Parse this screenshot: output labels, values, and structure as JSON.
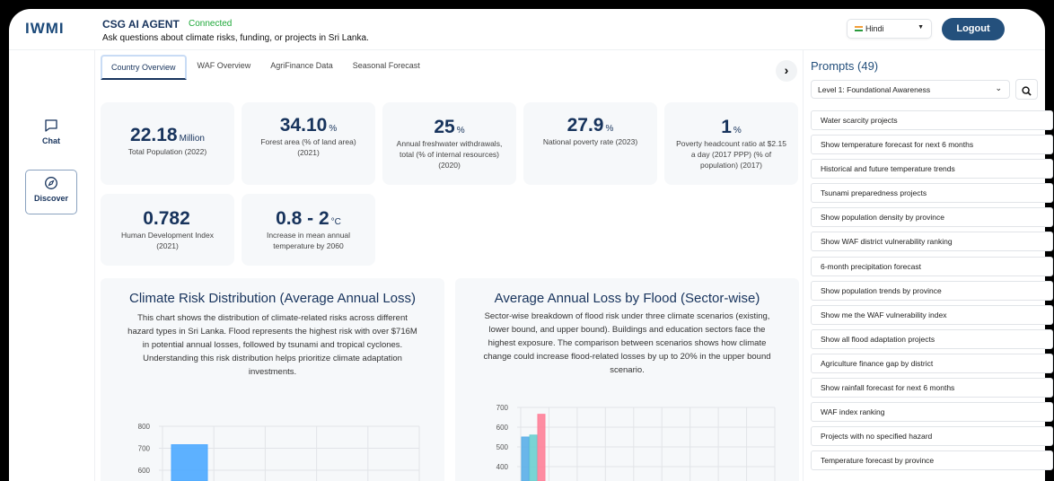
{
  "header": {
    "logo": "IWMI",
    "title": "CSG AI AGENT",
    "status": "Connected",
    "subtitle": "Ask questions about climate risks, funding, or projects in Sri Lanka.",
    "language": "Hindi",
    "logout": "Logout"
  },
  "sidebar": {
    "items": [
      {
        "label": "Chat",
        "icon": "chat-icon"
      },
      {
        "label": "Discover",
        "icon": "compass-icon"
      }
    ]
  },
  "tabs": [
    "Country Overview",
    "WAF Overview",
    "AgriFinance Data",
    "Seasonal Forecast"
  ],
  "stats": [
    {
      "value": "22.18",
      "unit": "Million",
      "label": "Total Population (2022)"
    },
    {
      "value": "34.10",
      "unit": "%",
      "label": "Forest area (% of land area) (2021)"
    },
    {
      "value": "25",
      "unit": "%",
      "label": "Annual freshwater withdrawals, total (% of internal resources) (2020)"
    },
    {
      "value": "27.9",
      "unit": "%",
      "label": "National poverty rate (2023)"
    },
    {
      "value": "1",
      "unit": "%",
      "label": "Poverty headcount ratio at $2.15 a day (2017 PPP) (% of population) (2017)"
    },
    {
      "value": "0.782",
      "unit": "",
      "label": "Human Development Index (2021)"
    },
    {
      "value": "0.8 - 2",
      "unit": "°C",
      "label": "Increase in mean annual temperature by 2060"
    }
  ],
  "charts": [
    {
      "title": "Climate Risk Distribution (Average Annual Loss)",
      "description": "This chart shows the distribution of climate-related risks across different hazard types in Sri Lanka. Flood represents the highest risk with over $716M in potential annual losses, followed by tsunami and tropical cyclones. Understanding this risk distribution helps prioritize climate adaptation investments."
    },
    {
      "title": "Average Annual Loss by Flood (Sector-wise)",
      "description": "Sector-wise breakdown of flood risk under three climate scenarios (existing, lower bound, and upper bound). Buildings and education sectors face the highest exposure. The comparison between scenarios shows how climate change could increase flood-related losses by up to 20% in the upper bound scenario."
    }
  ],
  "chart_data": [
    {
      "type": "bar",
      "title": "Climate Risk Distribution (Average Annual Loss)",
      "yticks": [
        600,
        700,
        800
      ],
      "ylim_visible": [
        560,
        800
      ],
      "categories_count": 5,
      "series": [
        {
          "name": "Flood",
          "values": [
            716
          ],
          "color": "#4da9ff"
        }
      ]
    },
    {
      "type": "bar",
      "title": "Average Annual Loss by Flood (Sector-wise)",
      "yticks": [
        400,
        500,
        600,
        700
      ],
      "ylim_visible": [
        380,
        700
      ],
      "categories_count": 9,
      "series": [
        {
          "name": "Existing",
          "values": [
            550
          ],
          "color": "#5aaee8"
        },
        {
          "name": "Lower Bound",
          "values": [
            560
          ],
          "color": "#6ccfcf"
        },
        {
          "name": "Upper Bound",
          "values": [
            665
          ],
          "color": "#ff7f98"
        }
      ]
    }
  ],
  "prompts": {
    "title": "Prompts (49)",
    "level": "Level 1: Foundational Awareness",
    "items": [
      "Water scarcity projects",
      "Show temperature forecast for next 6 months",
      "Historical and future temperature trends",
      "Tsunami preparedness projects",
      "Show population density by province",
      "Show WAF district vulnerability ranking",
      "6-month precipitation forecast",
      "Show population trends by province",
      "Show me the WAF vulnerability index",
      "Show all flood adaptation projects",
      "Agriculture finance gap by district",
      "Show rainfall forecast for next 6 months",
      "WAF index ranking",
      "Projects with no specified hazard",
      "Temperature forecast by province"
    ]
  }
}
